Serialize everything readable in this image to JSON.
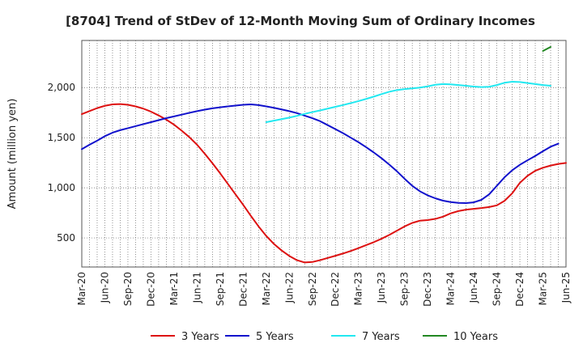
{
  "chart_data": {
    "type": "line",
    "title": "[8704]  Trend of StDev of 12-Month Moving Sum of Ordinary Incomes",
    "ylabel": "Amount (million yen)",
    "xlabel": "",
    "x_ticks": [
      "Mar-20",
      "Jun-20",
      "Sep-20",
      "Dec-20",
      "Mar-21",
      "Jun-21",
      "Sep-21",
      "Dec-21",
      "Mar-22",
      "Jun-22",
      "Sep-22",
      "Dec-22",
      "Mar-23",
      "Jun-23",
      "Sep-23",
      "Dec-23",
      "Mar-24",
      "Jun-24",
      "Sep-24",
      "Dec-24",
      "Mar-25",
      "Jun-25"
    ],
    "y_ticks": [
      500,
      1000,
      1500,
      2000
    ],
    "y_tick_labels": [
      "500",
      "1,000",
      "1,500",
      "2,000"
    ],
    "ylim": [
      210,
      2470
    ],
    "xlim": [
      "Mar-20",
      "Jun-25"
    ],
    "grid": true,
    "legend_position": "bottom",
    "series": [
      {
        "name": "3 Years",
        "color": "#dd1111",
        "points": [
          [
            "Mar-20",
            1735
          ],
          [
            "Apr-20",
            1765
          ],
          [
            "May-20",
            1795
          ],
          [
            "Jun-20",
            1818
          ],
          [
            "Jul-20",
            1832
          ],
          [
            "Aug-20",
            1835
          ],
          [
            "Sep-20",
            1828
          ],
          [
            "Oct-20",
            1812
          ],
          [
            "Nov-20",
            1790
          ],
          [
            "Dec-20",
            1760
          ],
          [
            "Jan-21",
            1722
          ],
          [
            "Feb-21",
            1680
          ],
          [
            "Mar-21",
            1630
          ],
          [
            "Apr-21",
            1570
          ],
          [
            "May-21",
            1505
          ],
          [
            "Jun-21",
            1430
          ],
          [
            "Jul-21",
            1340
          ],
          [
            "Aug-21",
            1245
          ],
          [
            "Sep-21",
            1145
          ],
          [
            "Oct-21",
            1040
          ],
          [
            "Nov-21",
            935
          ],
          [
            "Dec-21",
            830
          ],
          [
            "Jan-22",
            720
          ],
          [
            "Feb-22",
            615
          ],
          [
            "Mar-22",
            520
          ],
          [
            "Apr-22",
            440
          ],
          [
            "May-22",
            375
          ],
          [
            "Jun-22",
            320
          ],
          [
            "Jul-22",
            278
          ],
          [
            "Aug-22",
            255
          ],
          [
            "Sep-22",
            260
          ],
          [
            "Oct-22",
            278
          ],
          [
            "Nov-22",
            300
          ],
          [
            "Dec-22",
            322
          ],
          [
            "Jan-23",
            345
          ],
          [
            "Feb-23",
            370
          ],
          [
            "Mar-23",
            398
          ],
          [
            "Apr-23",
            428
          ],
          [
            "May-23",
            458
          ],
          [
            "Jun-23",
            492
          ],
          [
            "Jul-23",
            530
          ],
          [
            "Aug-23",
            572
          ],
          [
            "Sep-23",
            615
          ],
          [
            "Oct-23",
            650
          ],
          [
            "Nov-23",
            672
          ],
          [
            "Dec-23",
            678
          ],
          [
            "Jan-24",
            690
          ],
          [
            "Feb-24",
            712
          ],
          [
            "Mar-24",
            745
          ],
          [
            "Apr-24",
            768
          ],
          [
            "May-24",
            782
          ],
          [
            "Jun-24",
            790
          ],
          [
            "Jul-24",
            798
          ],
          [
            "Aug-24",
            808
          ],
          [
            "Sep-24",
            825
          ],
          [
            "Oct-24",
            870
          ],
          [
            "Nov-24",
            945
          ],
          [
            "Dec-24",
            1050
          ],
          [
            "Jan-25",
            1120
          ],
          [
            "Feb-25",
            1170
          ],
          [
            "Mar-25",
            1200
          ],
          [
            "Apr-25",
            1222
          ],
          [
            "May-25",
            1238
          ],
          [
            "Jun-25",
            1248
          ]
        ]
      },
      {
        "name": "5 Years",
        "color": "#1111cc",
        "points": [
          [
            "Mar-20",
            1385
          ],
          [
            "Apr-20",
            1430
          ],
          [
            "May-20",
            1470
          ],
          [
            "Jun-20",
            1515
          ],
          [
            "Jul-20",
            1550
          ],
          [
            "Aug-20",
            1575
          ],
          [
            "Sep-20",
            1595
          ],
          [
            "Oct-20",
            1615
          ],
          [
            "Nov-20",
            1635
          ],
          [
            "Dec-20",
            1655
          ],
          [
            "Jan-21",
            1675
          ],
          [
            "Feb-21",
            1695
          ],
          [
            "Mar-21",
            1712
          ],
          [
            "Apr-21",
            1730
          ],
          [
            "May-21",
            1748
          ],
          [
            "Jun-21",
            1765
          ],
          [
            "Jul-21",
            1780
          ],
          [
            "Aug-21",
            1793
          ],
          [
            "Sep-21",
            1803
          ],
          [
            "Oct-21",
            1812
          ],
          [
            "Nov-21",
            1820
          ],
          [
            "Dec-21",
            1828
          ],
          [
            "Jan-22",
            1832
          ],
          [
            "Feb-22",
            1825
          ],
          [
            "Mar-22",
            1812
          ],
          [
            "Apr-22",
            1798
          ],
          [
            "May-22",
            1782
          ],
          [
            "Jun-22",
            1765
          ],
          [
            "Jul-22",
            1745
          ],
          [
            "Aug-22",
            1720
          ],
          [
            "Sep-22",
            1695
          ],
          [
            "Oct-22",
            1665
          ],
          [
            "Nov-22",
            1625
          ],
          [
            "Dec-22",
            1585
          ],
          [
            "Jan-23",
            1545
          ],
          [
            "Feb-23",
            1500
          ],
          [
            "Mar-23",
            1455
          ],
          [
            "Apr-23",
            1405
          ],
          [
            "May-23",
            1352
          ],
          [
            "Jun-23",
            1295
          ],
          [
            "Jul-23",
            1232
          ],
          [
            "Aug-23",
            1165
          ],
          [
            "Sep-23",
            1090
          ],
          [
            "Oct-23",
            1020
          ],
          [
            "Nov-23",
            965
          ],
          [
            "Dec-23",
            925
          ],
          [
            "Jan-24",
            895
          ],
          [
            "Feb-24",
            872
          ],
          [
            "Mar-24",
            858
          ],
          [
            "Apr-24",
            850
          ],
          [
            "May-24",
            848
          ],
          [
            "Jun-24",
            855
          ],
          [
            "Jul-24",
            880
          ],
          [
            "Aug-24",
            935
          ],
          [
            "Sep-24",
            1020
          ],
          [
            "Oct-24",
            1105
          ],
          [
            "Nov-24",
            1175
          ],
          [
            "Dec-24",
            1230
          ],
          [
            "Jan-25",
            1275
          ],
          [
            "Feb-25",
            1318
          ],
          [
            "Mar-25",
            1365
          ],
          [
            "Apr-25",
            1410
          ],
          [
            "May-25",
            1440
          ]
        ]
      },
      {
        "name": "7 Years",
        "color": "#22e8f0",
        "points": [
          [
            "Mar-22",
            1655
          ],
          [
            "Apr-22",
            1670
          ],
          [
            "May-22",
            1685
          ],
          [
            "Jun-22",
            1700
          ],
          [
            "Jul-22",
            1718
          ],
          [
            "Aug-22",
            1738
          ],
          [
            "Sep-22",
            1755
          ],
          [
            "Oct-22",
            1772
          ],
          [
            "Nov-22",
            1790
          ],
          [
            "Dec-22",
            1808
          ],
          [
            "Jan-23",
            1826
          ],
          [
            "Feb-23",
            1845
          ],
          [
            "Mar-23",
            1865
          ],
          [
            "Apr-23",
            1887
          ],
          [
            "May-23",
            1910
          ],
          [
            "Jun-23",
            1935
          ],
          [
            "Jul-23",
            1958
          ],
          [
            "Aug-23",
            1975
          ],
          [
            "Sep-23",
            1985
          ],
          [
            "Oct-23",
            1992
          ],
          [
            "Nov-23",
            2000
          ],
          [
            "Dec-23",
            2012
          ],
          [
            "Jan-24",
            2028
          ],
          [
            "Feb-24",
            2035
          ],
          [
            "Mar-24",
            2032
          ],
          [
            "Apr-24",
            2025
          ],
          [
            "May-24",
            2018
          ],
          [
            "Jun-24",
            2010
          ],
          [
            "Jul-24",
            2005
          ],
          [
            "Aug-24",
            2008
          ],
          [
            "Sep-24",
            2025
          ],
          [
            "Oct-24",
            2048
          ],
          [
            "Nov-24",
            2058
          ],
          [
            "Dec-24",
            2055
          ],
          [
            "Jan-25",
            2045
          ],
          [
            "Feb-25",
            2035
          ],
          [
            "Mar-25",
            2025
          ],
          [
            "Apr-25",
            2018
          ]
        ]
      },
      {
        "name": "10 Years",
        "color": "#228822",
        "points": [
          [
            "Mar-25",
            2365
          ],
          [
            "Apr-25",
            2405
          ]
        ]
      }
    ]
  },
  "legend": [
    {
      "label": "3 Years",
      "color": "#dd1111"
    },
    {
      "label": "5 Years",
      "color": "#1111cc"
    },
    {
      "label": "7 Years",
      "color": "#22e8f0"
    },
    {
      "label": "10 Years",
      "color": "#228822"
    }
  ]
}
